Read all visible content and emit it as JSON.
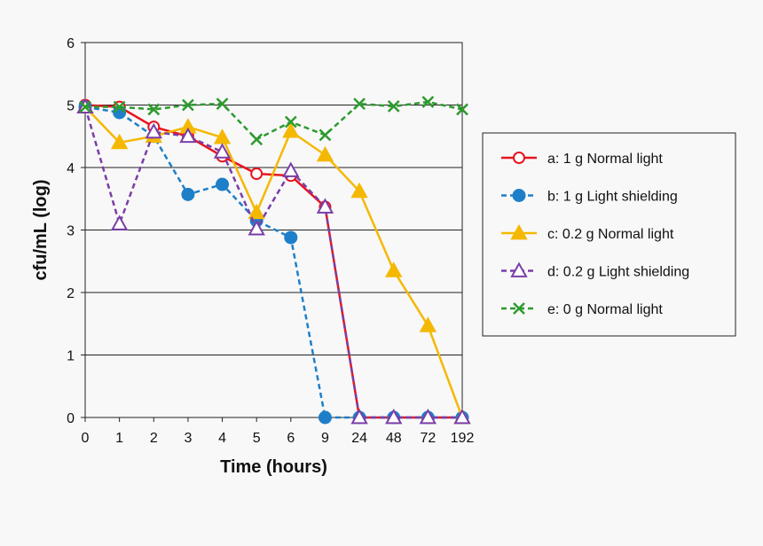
{
  "chart_data": {
    "type": "line",
    "xlabel": "Time (hours)",
    "ylabel": "cfu/mL (log)",
    "categories": [
      "0",
      "1",
      "2",
      "3",
      "4",
      "5",
      "6",
      "9",
      "24",
      "48",
      "72",
      "192"
    ],
    "ylim": [
      0,
      6
    ],
    "yticks": [
      "0",
      "1",
      "2",
      "3",
      "4",
      "5",
      "6"
    ],
    "grid": true,
    "legend_position": "right",
    "series": [
      {
        "name": "a: 1 g Normal light",
        "color": "#e8141e",
        "marker": "circle-open",
        "dash": "solid",
        "values": [
          5.0,
          4.97,
          4.65,
          4.5,
          4.18,
          3.9,
          3.87,
          3.37,
          0,
          0,
          0,
          0
        ]
      },
      {
        "name": "b: 1 g Light shielding",
        "color": "#1e7fc8",
        "marker": "circle-filled",
        "dash": "dashed",
        "values": [
          4.97,
          4.88,
          4.5,
          3.57,
          3.73,
          3.15,
          2.88,
          0,
          0,
          0,
          0,
          0
        ]
      },
      {
        "name": "c: 0.2 g Normal light",
        "color": "#f5b800",
        "marker": "triangle-filled",
        "dash": "solid",
        "values": [
          4.97,
          4.4,
          4.5,
          4.65,
          4.48,
          3.28,
          4.58,
          4.2,
          3.62,
          2.35,
          1.47,
          0
        ]
      },
      {
        "name": "d: 0.2 g Light shielding",
        "color": "#7a3ea8",
        "marker": "triangle-open",
        "dash": "dashed",
        "values": [
          4.97,
          3.1,
          4.57,
          4.5,
          4.25,
          3.02,
          3.95,
          3.37,
          0,
          0,
          0,
          0
        ]
      },
      {
        "name": "e: 0 g Normal light",
        "color": "#2e9a2e",
        "marker": "x",
        "dash": "dashed",
        "values": [
          4.97,
          4.97,
          4.93,
          5.0,
          5.02,
          4.45,
          4.73,
          4.52,
          5.02,
          4.98,
          5.05,
          4.93
        ]
      }
    ]
  }
}
